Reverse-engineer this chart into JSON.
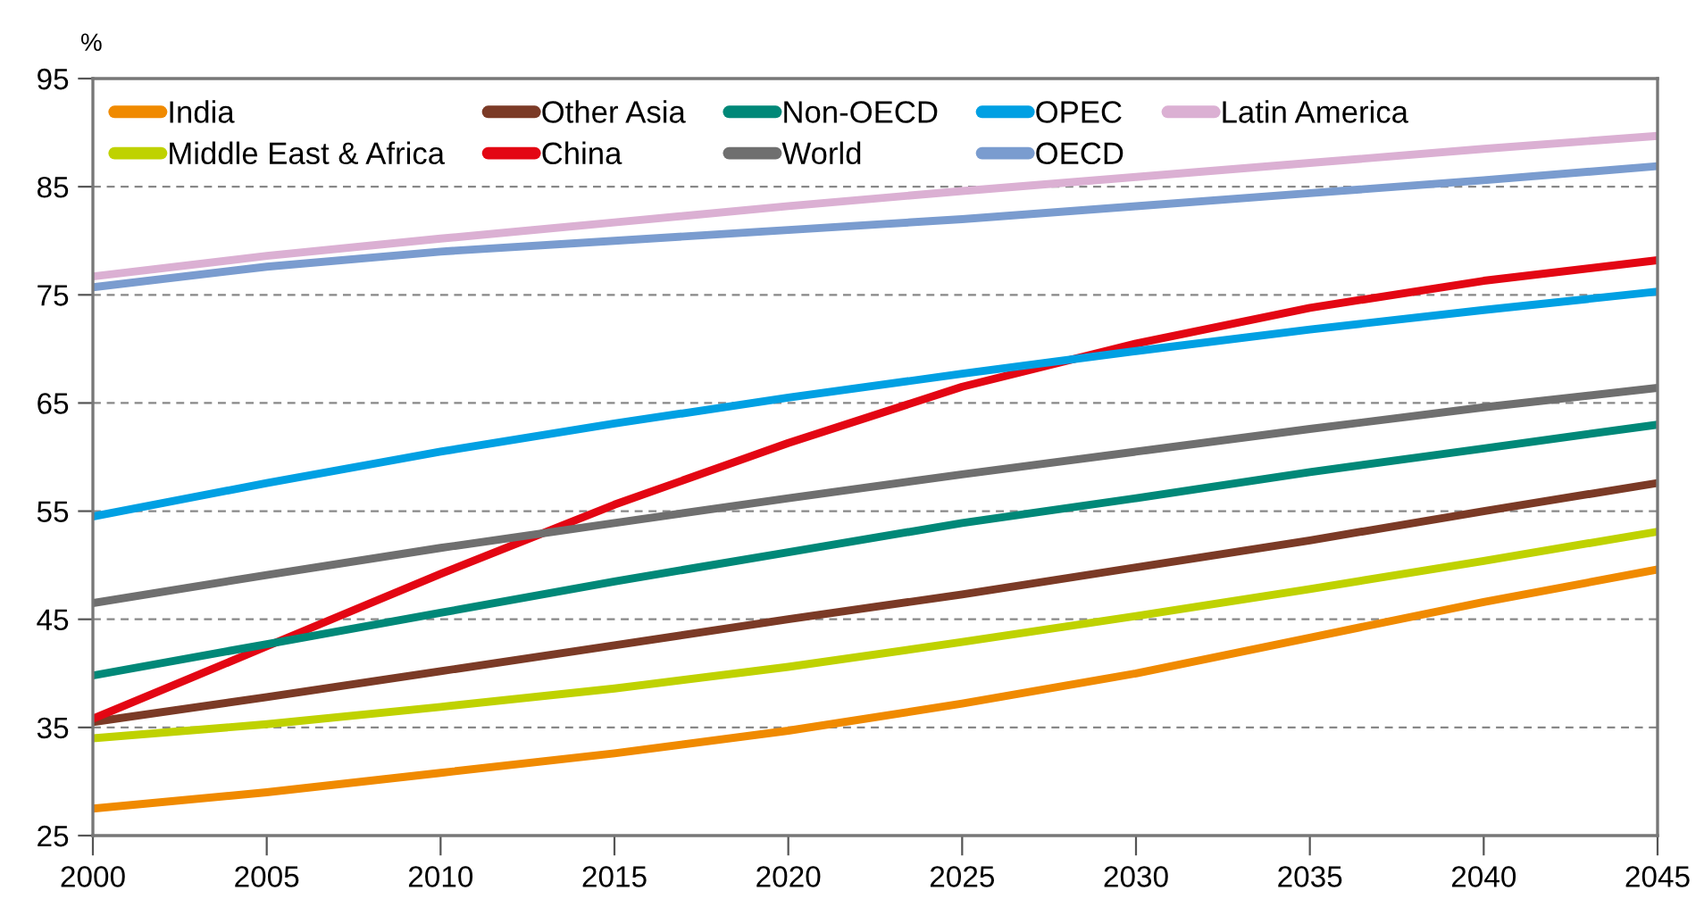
{
  "chart_data": {
    "type": "line",
    "ylabel": "%",
    "x": [
      2000,
      2005,
      2010,
      2015,
      2020,
      2025,
      2030,
      2035,
      2040,
      2045
    ],
    "xlim": [
      2000,
      2045
    ],
    "xticks": [
      2000,
      2005,
      2010,
      2015,
      2020,
      2025,
      2030,
      2035,
      2040,
      2045
    ],
    "ylim": [
      25,
      95
    ],
    "yticks": [
      25,
      35,
      45,
      55,
      65,
      75,
      85,
      95
    ],
    "grid": "y",
    "legend": "top left",
    "marker": "none",
    "line_style": "solid",
    "series": [
      {
        "name": "India",
        "color": "#f08a00",
        "values": [
          27.5,
          29,
          30.8,
          32.6,
          34.7,
          37.2,
          40,
          43.3,
          46.6,
          49.6
        ]
      },
      {
        "name": "Middle East & Africa",
        "color": "#bfd200",
        "values": [
          34,
          35.3,
          36.9,
          38.6,
          40.6,
          42.9,
          45.3,
          47.8,
          50.4,
          53.1
        ]
      },
      {
        "name": "Other Asia",
        "color": "#7b3a26",
        "values": [
          35.5,
          37.8,
          40.2,
          42.6,
          45,
          47.3,
          49.8,
          52.3,
          55,
          57.6
        ]
      },
      {
        "name": "China",
        "color": "#e30613",
        "values": [
          35.8,
          42.5,
          49.2,
          55.6,
          61.3,
          66.5,
          70.5,
          73.8,
          76.3,
          78.2
        ]
      },
      {
        "name": "Non-OECD",
        "color": "#008878",
        "values": [
          39.8,
          42.7,
          45.6,
          48.5,
          51.2,
          53.9,
          56.2,
          58.6,
          60.8,
          63
        ]
      },
      {
        "name": "World",
        "color": "#6f6f6f",
        "values": [
          46.5,
          49.1,
          51.6,
          53.9,
          56.2,
          58.4,
          60.5,
          62.6,
          64.6,
          66.4
        ]
      },
      {
        "name": "OPEC",
        "color": "#00a0e3",
        "values": [
          54.5,
          57.6,
          60.5,
          63.1,
          65.5,
          67.7,
          69.8,
          71.8,
          73.6,
          75.3
        ]
      },
      {
        "name": "OECD",
        "color": "#7a9ccf",
        "values": [
          75.7,
          77.6,
          79,
          80,
          81,
          82,
          83.2,
          84.4,
          85.6,
          86.9
        ]
      },
      {
        "name": "Latin America",
        "color": "#dbb0d3",
        "values": [
          76.7,
          78.6,
          80.2,
          81.7,
          83.2,
          84.6,
          85.9,
          87.2,
          88.5,
          89.7
        ]
      }
    ]
  }
}
